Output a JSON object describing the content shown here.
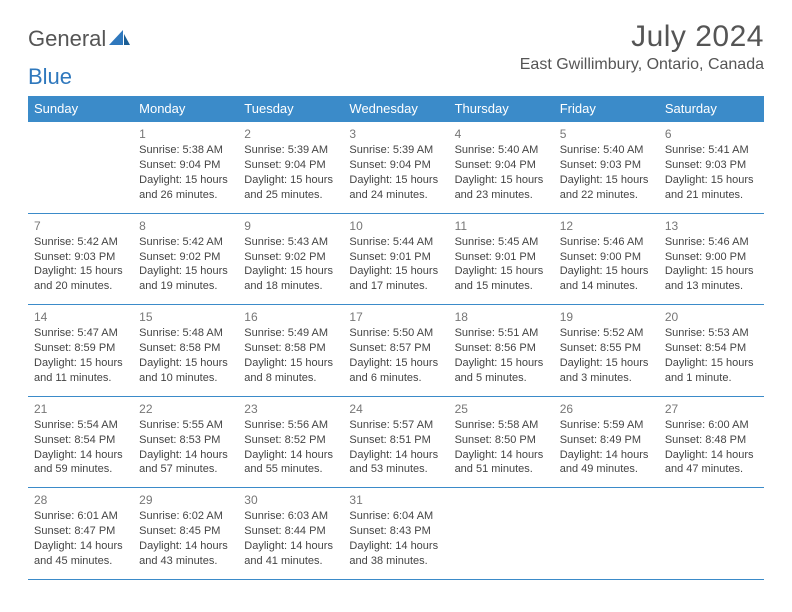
{
  "logo": {
    "text_a": "General",
    "text_b": "Blue"
  },
  "title": "July 2024",
  "subtitle": "East Gwillimbury, Ontario, Canada",
  "colors": {
    "header_bg": "#3b8bc9",
    "header_fg": "#ffffff",
    "border": "#3b8bc9",
    "text": "#444444",
    "daynum": "#777777",
    "logo_gray": "#555555",
    "logo_blue": "#2f78bd"
  },
  "weekdays": [
    "Sunday",
    "Monday",
    "Tuesday",
    "Wednesday",
    "Thursday",
    "Friday",
    "Saturday"
  ],
  "weeks": [
    [
      null,
      {
        "n": "1",
        "sr": "Sunrise: 5:38 AM",
        "ss": "Sunset: 9:04 PM",
        "d1": "Daylight: 15 hours",
        "d2": "and 26 minutes."
      },
      {
        "n": "2",
        "sr": "Sunrise: 5:39 AM",
        "ss": "Sunset: 9:04 PM",
        "d1": "Daylight: 15 hours",
        "d2": "and 25 minutes."
      },
      {
        "n": "3",
        "sr": "Sunrise: 5:39 AM",
        "ss": "Sunset: 9:04 PM",
        "d1": "Daylight: 15 hours",
        "d2": "and 24 minutes."
      },
      {
        "n": "4",
        "sr": "Sunrise: 5:40 AM",
        "ss": "Sunset: 9:04 PM",
        "d1": "Daylight: 15 hours",
        "d2": "and 23 minutes."
      },
      {
        "n": "5",
        "sr": "Sunrise: 5:40 AM",
        "ss": "Sunset: 9:03 PM",
        "d1": "Daylight: 15 hours",
        "d2": "and 22 minutes."
      },
      {
        "n": "6",
        "sr": "Sunrise: 5:41 AM",
        "ss": "Sunset: 9:03 PM",
        "d1": "Daylight: 15 hours",
        "d2": "and 21 minutes."
      }
    ],
    [
      {
        "n": "7",
        "sr": "Sunrise: 5:42 AM",
        "ss": "Sunset: 9:03 PM",
        "d1": "Daylight: 15 hours",
        "d2": "and 20 minutes."
      },
      {
        "n": "8",
        "sr": "Sunrise: 5:42 AM",
        "ss": "Sunset: 9:02 PM",
        "d1": "Daylight: 15 hours",
        "d2": "and 19 minutes."
      },
      {
        "n": "9",
        "sr": "Sunrise: 5:43 AM",
        "ss": "Sunset: 9:02 PM",
        "d1": "Daylight: 15 hours",
        "d2": "and 18 minutes."
      },
      {
        "n": "10",
        "sr": "Sunrise: 5:44 AM",
        "ss": "Sunset: 9:01 PM",
        "d1": "Daylight: 15 hours",
        "d2": "and 17 minutes."
      },
      {
        "n": "11",
        "sr": "Sunrise: 5:45 AM",
        "ss": "Sunset: 9:01 PM",
        "d1": "Daylight: 15 hours",
        "d2": "and 15 minutes."
      },
      {
        "n": "12",
        "sr": "Sunrise: 5:46 AM",
        "ss": "Sunset: 9:00 PM",
        "d1": "Daylight: 15 hours",
        "d2": "and 14 minutes."
      },
      {
        "n": "13",
        "sr": "Sunrise: 5:46 AM",
        "ss": "Sunset: 9:00 PM",
        "d1": "Daylight: 15 hours",
        "d2": "and 13 minutes."
      }
    ],
    [
      {
        "n": "14",
        "sr": "Sunrise: 5:47 AM",
        "ss": "Sunset: 8:59 PM",
        "d1": "Daylight: 15 hours",
        "d2": "and 11 minutes."
      },
      {
        "n": "15",
        "sr": "Sunrise: 5:48 AM",
        "ss": "Sunset: 8:58 PM",
        "d1": "Daylight: 15 hours",
        "d2": "and 10 minutes."
      },
      {
        "n": "16",
        "sr": "Sunrise: 5:49 AM",
        "ss": "Sunset: 8:58 PM",
        "d1": "Daylight: 15 hours",
        "d2": "and 8 minutes."
      },
      {
        "n": "17",
        "sr": "Sunrise: 5:50 AM",
        "ss": "Sunset: 8:57 PM",
        "d1": "Daylight: 15 hours",
        "d2": "and 6 minutes."
      },
      {
        "n": "18",
        "sr": "Sunrise: 5:51 AM",
        "ss": "Sunset: 8:56 PM",
        "d1": "Daylight: 15 hours",
        "d2": "and 5 minutes."
      },
      {
        "n": "19",
        "sr": "Sunrise: 5:52 AM",
        "ss": "Sunset: 8:55 PM",
        "d1": "Daylight: 15 hours",
        "d2": "and 3 minutes."
      },
      {
        "n": "20",
        "sr": "Sunrise: 5:53 AM",
        "ss": "Sunset: 8:54 PM",
        "d1": "Daylight: 15 hours",
        "d2": "and 1 minute."
      }
    ],
    [
      {
        "n": "21",
        "sr": "Sunrise: 5:54 AM",
        "ss": "Sunset: 8:54 PM",
        "d1": "Daylight: 14 hours",
        "d2": "and 59 minutes."
      },
      {
        "n": "22",
        "sr": "Sunrise: 5:55 AM",
        "ss": "Sunset: 8:53 PM",
        "d1": "Daylight: 14 hours",
        "d2": "and 57 minutes."
      },
      {
        "n": "23",
        "sr": "Sunrise: 5:56 AM",
        "ss": "Sunset: 8:52 PM",
        "d1": "Daylight: 14 hours",
        "d2": "and 55 minutes."
      },
      {
        "n": "24",
        "sr": "Sunrise: 5:57 AM",
        "ss": "Sunset: 8:51 PM",
        "d1": "Daylight: 14 hours",
        "d2": "and 53 minutes."
      },
      {
        "n": "25",
        "sr": "Sunrise: 5:58 AM",
        "ss": "Sunset: 8:50 PM",
        "d1": "Daylight: 14 hours",
        "d2": "and 51 minutes."
      },
      {
        "n": "26",
        "sr": "Sunrise: 5:59 AM",
        "ss": "Sunset: 8:49 PM",
        "d1": "Daylight: 14 hours",
        "d2": "and 49 minutes."
      },
      {
        "n": "27",
        "sr": "Sunrise: 6:00 AM",
        "ss": "Sunset: 8:48 PM",
        "d1": "Daylight: 14 hours",
        "d2": "and 47 minutes."
      }
    ],
    [
      {
        "n": "28",
        "sr": "Sunrise: 6:01 AM",
        "ss": "Sunset: 8:47 PM",
        "d1": "Daylight: 14 hours",
        "d2": "and 45 minutes."
      },
      {
        "n": "29",
        "sr": "Sunrise: 6:02 AM",
        "ss": "Sunset: 8:45 PM",
        "d1": "Daylight: 14 hours",
        "d2": "and 43 minutes."
      },
      {
        "n": "30",
        "sr": "Sunrise: 6:03 AM",
        "ss": "Sunset: 8:44 PM",
        "d1": "Daylight: 14 hours",
        "d2": "and 41 minutes."
      },
      {
        "n": "31",
        "sr": "Sunrise: 6:04 AM",
        "ss": "Sunset: 8:43 PM",
        "d1": "Daylight: 14 hours",
        "d2": "and 38 minutes."
      },
      null,
      null,
      null
    ]
  ]
}
